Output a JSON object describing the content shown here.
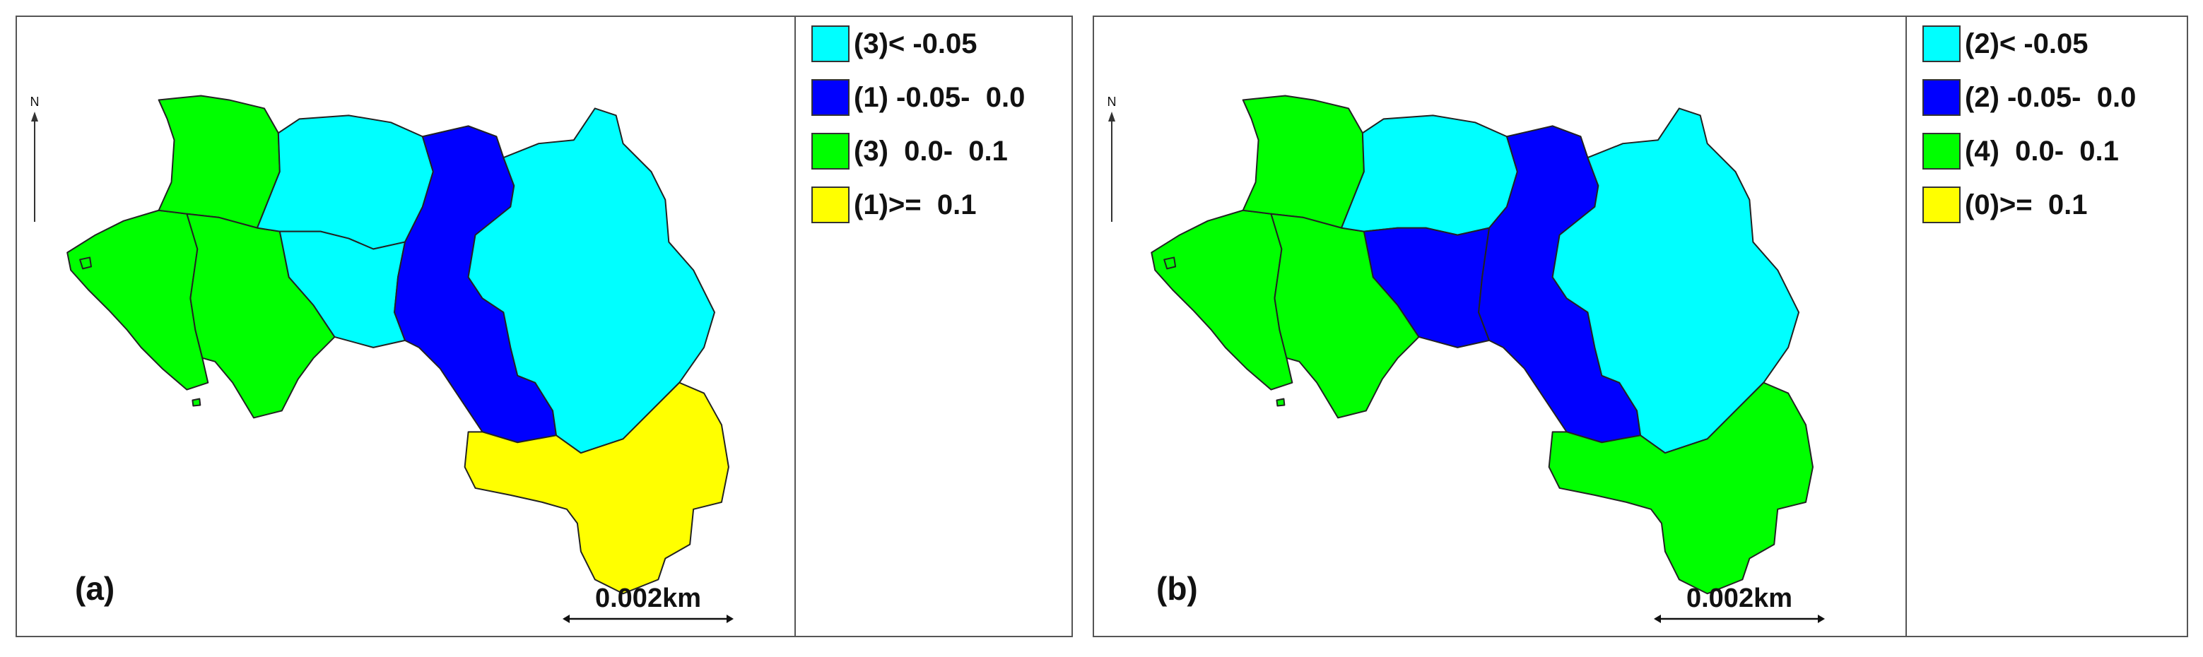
{
  "colors": {
    "cat1": "#00FFFF",
    "cat2": "#0000FF",
    "cat3": "#00FF00",
    "cat4": "#FFFF00"
  },
  "panels": [
    {
      "label": "(a)",
      "scale": "0.002km",
      "north": "N",
      "legend": [
        {
          "text": "(3)< -0.05",
          "color": "#00FFFF"
        },
        {
          "text": "(1) -0.05-  0.0",
          "color": "#0000FF"
        },
        {
          "text": "(3)  0.0-  0.1",
          "color": "#00FF00"
        },
        {
          "text": "(1)>=  0.1",
          "color": "#FFFF00"
        }
      ]
    },
    {
      "label": "(b)",
      "scale": "0.002km",
      "north": "N",
      "legend": [
        {
          "text": "(2)< -0.05",
          "color": "#00FFFF"
        },
        {
          "text": "(2) -0.05-  0.0",
          "color": "#0000FF"
        },
        {
          "text": "(4)  0.0-  0.1",
          "color": "#00FF00"
        },
        {
          "text": "(0)>=  0.1",
          "color": "#FFFF00"
        }
      ]
    }
  ]
}
